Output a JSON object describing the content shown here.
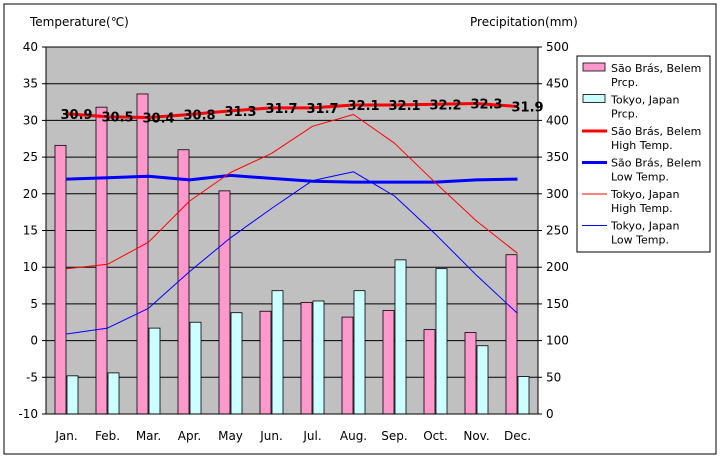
{
  "chart_data": {
    "type": "bar",
    "title": "",
    "categories": [
      "Jan.",
      "Feb.",
      "Mar.",
      "Apr.",
      "May",
      "Jun.",
      "Jul.",
      "Aug.",
      "Sep.",
      "Oct.",
      "Nov.",
      "Dec."
    ],
    "y_left": {
      "label": "Temperature(℃)",
      "range": [
        -10,
        40
      ],
      "ticks": [
        -10,
        -5,
        0,
        5,
        10,
        15,
        20,
        25,
        30,
        35,
        40
      ]
    },
    "y_right": {
      "label": "Precipitation(mm)",
      "range": [
        0,
        500
      ],
      "ticks": [
        0,
        50,
        100,
        150,
        200,
        250,
        300,
        350,
        400,
        450,
        500
      ]
    },
    "bar_series": [
      {
        "name": "São Brás, Belem Prcp.",
        "legend_lines": [
          "São Brás, Belem",
          "Prcp."
        ],
        "color": "#ff99cc",
        "axis": "right",
        "values": [
          366,
          418,
          436,
          360,
          304,
          140,
          152,
          132,
          141,
          115,
          111,
          217
        ]
      },
      {
        "name": "Tokyo, Japan Prcp.",
        "legend_lines": [
          "Tokyo, Japan",
          "Prcp."
        ],
        "color": "#ccffff",
        "axis": "right",
        "values": [
          52,
          56,
          117,
          125,
          138,
          168,
          154,
          168,
          210,
          198,
          93,
          51
        ]
      }
    ],
    "line_series": [
      {
        "name": "São Brás, Belem High Temp.",
        "legend_lines": [
          "São Brás, Belem",
          "High Temp."
        ],
        "color": "#ff0000",
        "width": 3,
        "axis": "left",
        "values": [
          30.9,
          30.5,
          30.4,
          30.8,
          31.3,
          31.7,
          31.7,
          32.1,
          32.1,
          32.2,
          32.3,
          31.9
        ],
        "labels": [
          "30.9",
          "30.5",
          "30.4",
          "30.8",
          "31.3",
          "31.7",
          "31.7",
          "32.1",
          "32.1",
          "32.2",
          "32.3",
          "31.9"
        ]
      },
      {
        "name": "São Brás, Belem Low Temp.",
        "legend_lines": [
          "São Brás, Belem",
          "Low Temp."
        ],
        "color": "#0000ff",
        "width": 3,
        "axis": "left",
        "values": [
          22.0,
          22.2,
          22.4,
          21.9,
          22.5,
          22.1,
          21.7,
          21.6,
          21.6,
          21.6,
          21.9,
          22.0
        ]
      },
      {
        "name": "Tokyo, Japan High Temp.",
        "legend_lines": [
          "Tokyo, Japan",
          "High Temp."
        ],
        "color": "#ff0000",
        "width": 1,
        "axis": "left",
        "values": [
          9.8,
          10.4,
          13.4,
          19.0,
          22.9,
          25.5,
          29.2,
          30.8,
          26.9,
          21.5,
          16.3,
          11.9
        ]
      },
      {
        "name": "Tokyo, Japan Low Temp.",
        "legend_lines": [
          "Tokyo, Japan",
          "Low Temp."
        ],
        "color": "#0000ff",
        "width": 1,
        "axis": "left",
        "values": [
          0.9,
          1.7,
          4.4,
          9.4,
          14.0,
          18.0,
          21.8,
          23.0,
          19.7,
          14.5,
          8.9,
          3.7
        ]
      }
    ],
    "legend_position": "right",
    "grid": true,
    "colors": {
      "plot_background": "#c0c0c0",
      "gridline": "#000000",
      "frame": "#000000"
    }
  }
}
